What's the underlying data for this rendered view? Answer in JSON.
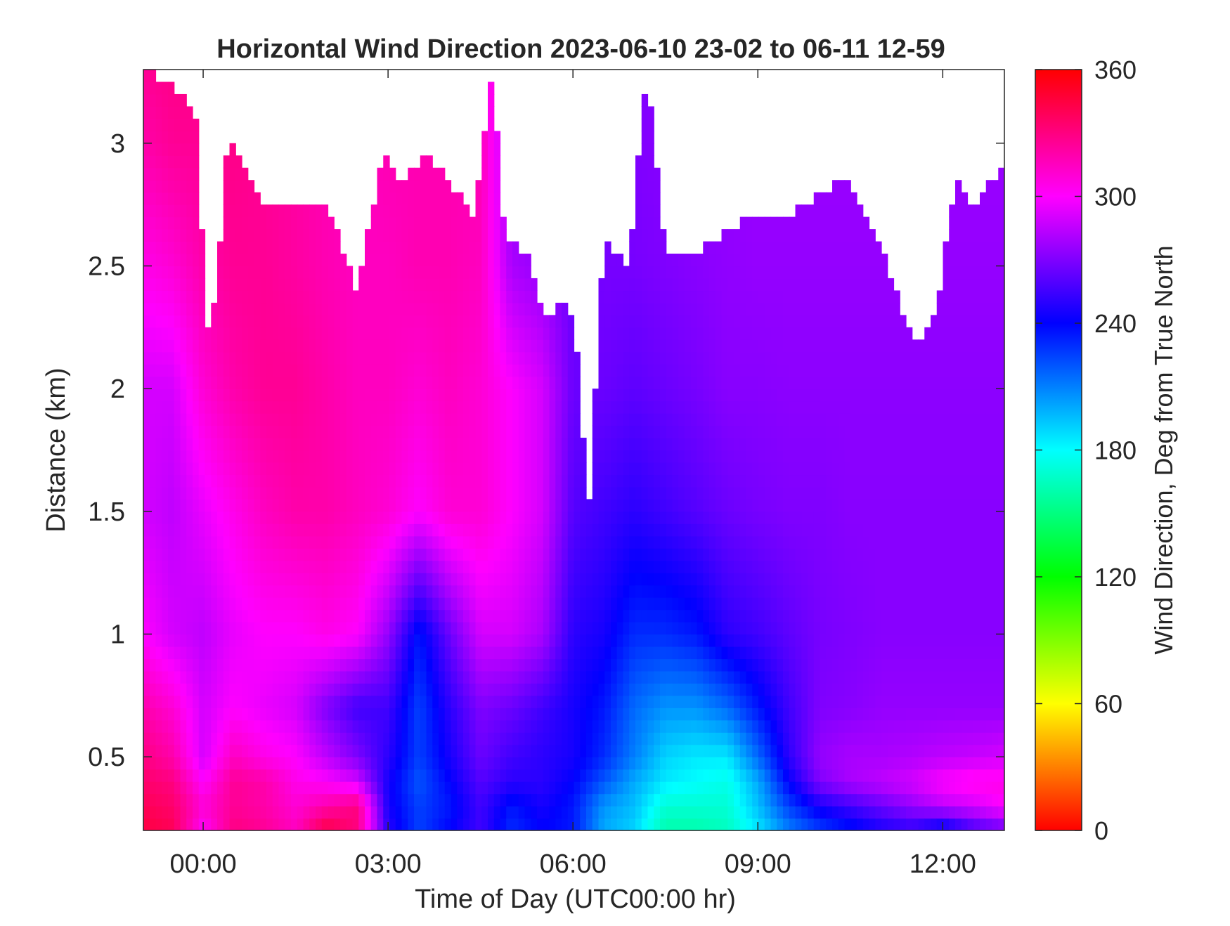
{
  "chart_data": {
    "type": "heatmap",
    "title": "Horizontal Wind Direction 2023-06-10 23-02 to 06-11 12-59",
    "xlabel": "Time of Day (UTC00:00 hr)",
    "ylabel": "Distance (km)",
    "colorbar_label": "Wind Direction, Deg from True North",
    "xlim_hours": [
      -0.97,
      13.0
    ],
    "ylim": [
      0.2,
      3.3
    ],
    "clim": [
      0,
      360
    ],
    "colormap": "hsv",
    "x_ticks": [
      {
        "value": 0,
        "label": "00:00"
      },
      {
        "value": 3,
        "label": "03:00"
      },
      {
        "value": 6,
        "label": "06:00"
      },
      {
        "value": 9,
        "label": "09:00"
      },
      {
        "value": 12,
        "label": "12:00"
      }
    ],
    "y_ticks": [
      {
        "value": 0.5,
        "label": "0.5"
      },
      {
        "value": 1,
        "label": "1"
      },
      {
        "value": 1.5,
        "label": "1.5"
      },
      {
        "value": 2,
        "label": "2"
      },
      {
        "value": 2.5,
        "label": "2.5"
      },
      {
        "value": 3,
        "label": "3"
      }
    ],
    "colorbar_ticks": [
      {
        "value": 0,
        "label": "0"
      },
      {
        "value": 60,
        "label": "60"
      },
      {
        "value": 120,
        "label": "120"
      },
      {
        "value": 180,
        "label": "180"
      },
      {
        "value": 240,
        "label": "240"
      },
      {
        "value": 300,
        "label": "300"
      },
      {
        "value": 360,
        "label": "360"
      }
    ],
    "x_hours": [
      -0.97,
      -0.5,
      0,
      0.5,
      1,
      1.5,
      2,
      2.5,
      3,
      3.5,
      4,
      4.5,
      5,
      5.5,
      6,
      6.5,
      7,
      7.5,
      8,
      8.5,
      9,
      9.5,
      10,
      10.5,
      11,
      11.5,
      12,
      12.5,
      13
    ],
    "y_km": [
      0.2,
      0.3,
      0.4,
      0.5,
      0.7,
      1.0,
      1.5,
      2.0,
      2.5,
      3.0,
      3.3
    ],
    "direction_deg": [
      [
        345,
        340,
        300,
        330,
        325,
        315,
        345,
        330,
        250,
        225,
        240,
        255,
        230,
        240,
        235,
        200,
        190,
        160,
        160,
        165,
        185,
        210,
        225,
        235,
        245,
        250,
        235,
        255,
        265
      ],
      [
        340,
        335,
        310,
        325,
        320,
        310,
        320,
        330,
        245,
        225,
        235,
        255,
        235,
        245,
        235,
        205,
        195,
        170,
        170,
        170,
        195,
        225,
        245,
        255,
        265,
        275,
        285,
        290,
        300
      ],
      [
        335,
        330,
        300,
        325,
        320,
        305,
        300,
        290,
        245,
        220,
        240,
        260,
        250,
        250,
        240,
        220,
        200,
        185,
        180,
        175,
        200,
        240,
        270,
        280,
        285,
        290,
        300,
        305,
        305
      ],
      [
        330,
        320,
        290,
        315,
        305,
        300,
        285,
        270,
        250,
        225,
        245,
        265,
        255,
        250,
        245,
        230,
        210,
        190,
        185,
        185,
        215,
        250,
        275,
        280,
        280,
        282,
        285,
        287,
        290
      ],
      [
        320,
        310,
        290,
        300,
        295,
        290,
        270,
        255,
        255,
        225,
        250,
        270,
        265,
        255,
        245,
        235,
        215,
        205,
        205,
        215,
        235,
        255,
        270,
        272,
        275,
        275,
        275,
        275,
        275
      ],
      [
        300,
        290,
        285,
        295,
        300,
        300,
        305,
        300,
        275,
        235,
        265,
        290,
        290,
        280,
        250,
        245,
        230,
        230,
        235,
        250,
        255,
        262,
        268,
        270,
        272,
        272,
        272,
        272,
        272
      ],
      [
        290,
        285,
        295,
        305,
        315,
        320,
        320,
        315,
        310,
        300,
        310,
        310,
        300,
        290,
        260,
        255,
        250,
        255,
        260,
        265,
        268,
        270,
        270,
        272,
        272,
        272,
        272,
        272,
        272
      ],
      [
        290,
        290,
        310,
        320,
        325,
        325,
        320,
        315,
        315,
        310,
        315,
        310,
        300,
        290,
        265,
        265,
        262,
        265,
        268,
        272,
        272,
        273,
        273,
        273,
        273,
        273,
        273,
        273,
        273
      ],
      [
        305,
        310,
        320,
        325,
        325,
        322,
        318,
        315,
        315,
        318,
        318,
        315,
        280,
        275,
        265,
        268,
        268,
        270,
        272,
        274,
        275,
        275,
        275,
        275,
        275,
        275,
        275,
        275,
        275
      ],
      [
        320,
        325,
        325,
        328,
        325,
        322,
        318,
        315,
        318,
        318,
        318,
        318,
        275,
        272,
        268,
        270,
        270,
        272,
        274,
        275,
        276,
        276,
        276,
        276,
        276,
        276,
        276,
        276,
        276
      ],
      [
        325,
        328,
        328,
        328,
        325,
        322,
        318,
        315,
        318,
        318,
        318,
        318,
        275,
        272,
        268,
        270,
        270,
        272,
        274,
        275,
        276,
        276,
        276,
        276,
        276,
        276,
        276,
        276,
        276
      ]
    ],
    "data_top_km": [
      [
        -0.97,
        3.3
      ],
      [
        -0.5,
        3.25
      ],
      [
        -0.1,
        3.1
      ],
      [
        0.05,
        2.25
      ],
      [
        0.2,
        2.35
      ],
      [
        0.4,
        3.05
      ],
      [
        1,
        2.75
      ],
      [
        1.6,
        2.75
      ],
      [
        2,
        2.75
      ],
      [
        2.5,
        2.4
      ],
      [
        2.9,
        2.95
      ],
      [
        3.2,
        2.85
      ],
      [
        3.6,
        2.95
      ],
      [
        4,
        2.85
      ],
      [
        4.4,
        2.7
      ],
      [
        4.7,
        3.3
      ],
      [
        4.9,
        2.6
      ],
      [
        5.3,
        2.55
      ],
      [
        5.5,
        2.3
      ],
      [
        5.9,
        2.35
      ],
      [
        6.05,
        2.2
      ],
      [
        6.25,
        1.5
      ],
      [
        6.5,
        2.6
      ],
      [
        6.9,
        2.5
      ],
      [
        7.2,
        3.3
      ],
      [
        7.5,
        2.55
      ],
      [
        8,
        2.55
      ],
      [
        8.5,
        2.65
      ],
      [
        9,
        2.7
      ],
      [
        9.5,
        2.7
      ],
      [
        10,
        2.8
      ],
      [
        10.5,
        2.85
      ],
      [
        11,
        2.6
      ],
      [
        11.3,
        2.35
      ],
      [
        11.6,
        2.2
      ],
      [
        11.9,
        2.3
      ],
      [
        12.2,
        2.85
      ],
      [
        12.5,
        2.75
      ],
      [
        13,
        2.9
      ]
    ]
  }
}
